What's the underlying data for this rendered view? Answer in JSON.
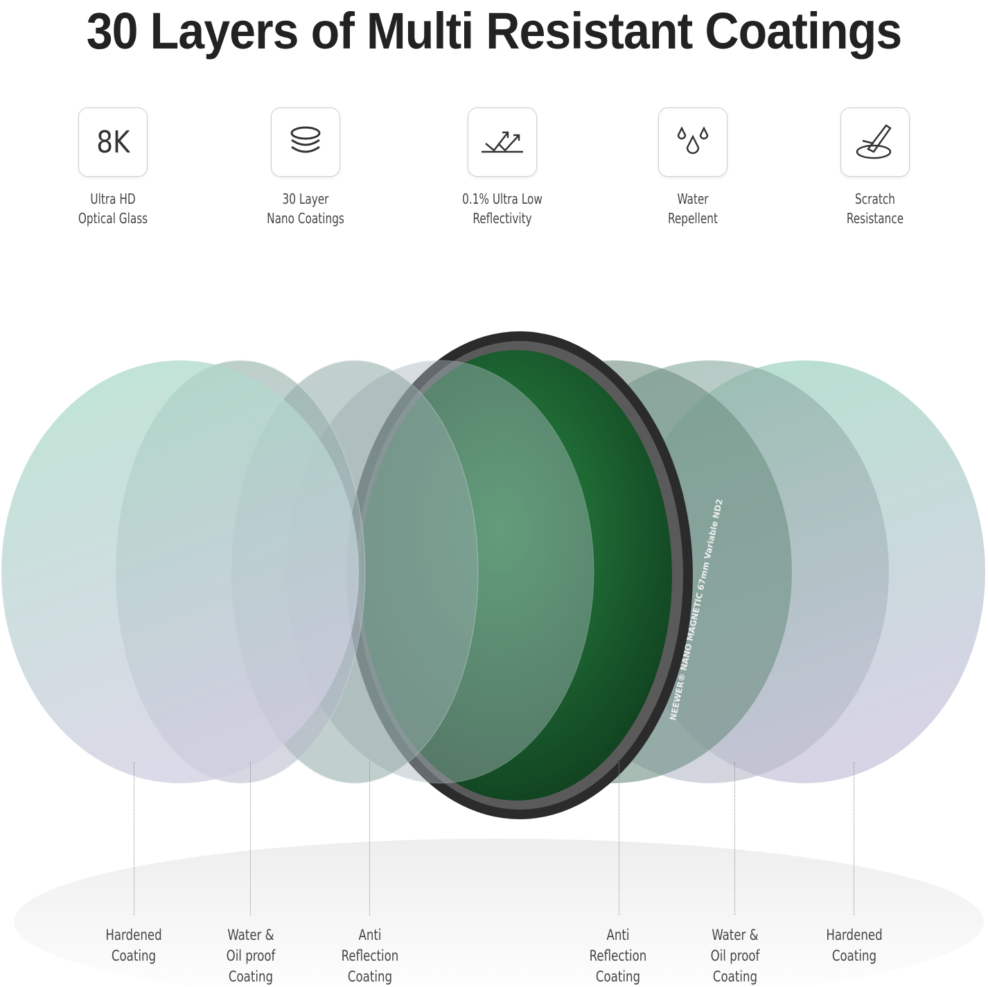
{
  "title": "30 Layers of Multi Resistant Coatings",
  "features": [
    {
      "icon": "8k-icon",
      "icon_text": "8K",
      "line1": "Ultra HD",
      "line2": "Optical Glass"
    },
    {
      "icon": "layers-icon",
      "line1": "30 Layer",
      "line2": "Nano Coatings"
    },
    {
      "icon": "low-reflection-icon",
      "line1": "0.1% Ultra Low",
      "line2": "Reflectivity"
    },
    {
      "icon": "water-drops-icon",
      "line1": "Water",
      "line2": "Repellent"
    },
    {
      "icon": "scratch-icon",
      "line1": "Scratch",
      "line2": "Resistance"
    }
  ],
  "filter_ring_text": "NEEWER® NANO MAGNETIC 67mm Variable ND2",
  "coatings": [
    {
      "line1": "Hardened",
      "line2": "Coating",
      "line3": ""
    },
    {
      "line1": "Water &",
      "line2": "Oil proof",
      "line3": "Coating"
    },
    {
      "line1": "Anti",
      "line2": "Reflection",
      "line3": "Coating"
    },
    {
      "line1": "Anti",
      "line2": "Reflection",
      "line3": "Coating"
    },
    {
      "line1": "Water &",
      "line2": "Oil proof",
      "line3": "Coating"
    },
    {
      "line1": "Hardened",
      "line2": "Coating",
      "line3": ""
    }
  ],
  "colors": {
    "filter_glass": "#1f6b35",
    "disk_top": "#a8dcc6",
    "disk_bottom": "#cfcde0"
  }
}
